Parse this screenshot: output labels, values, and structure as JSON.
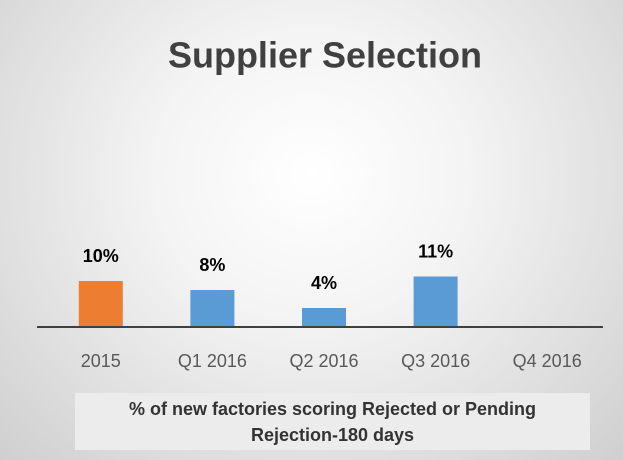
{
  "chart_data": {
    "type": "bar",
    "title": "Supplier Selection",
    "categories": [
      "2015",
      "Q1 2016",
      "Q2 2016",
      "Q3 2016",
      "Q4 2016"
    ],
    "values": [
      10,
      8,
      4,
      11,
      null
    ],
    "value_labels": [
      "10%",
      "8%",
      "4%",
      "11%",
      null
    ],
    "colors": [
      "#ed7d31",
      "#5b9bd5",
      "#5b9bd5",
      "#5b9bd5",
      "#5b9bd5"
    ],
    "caption": "% of new factories scoring Rejected or Pending Rejection-180 days"
  }
}
